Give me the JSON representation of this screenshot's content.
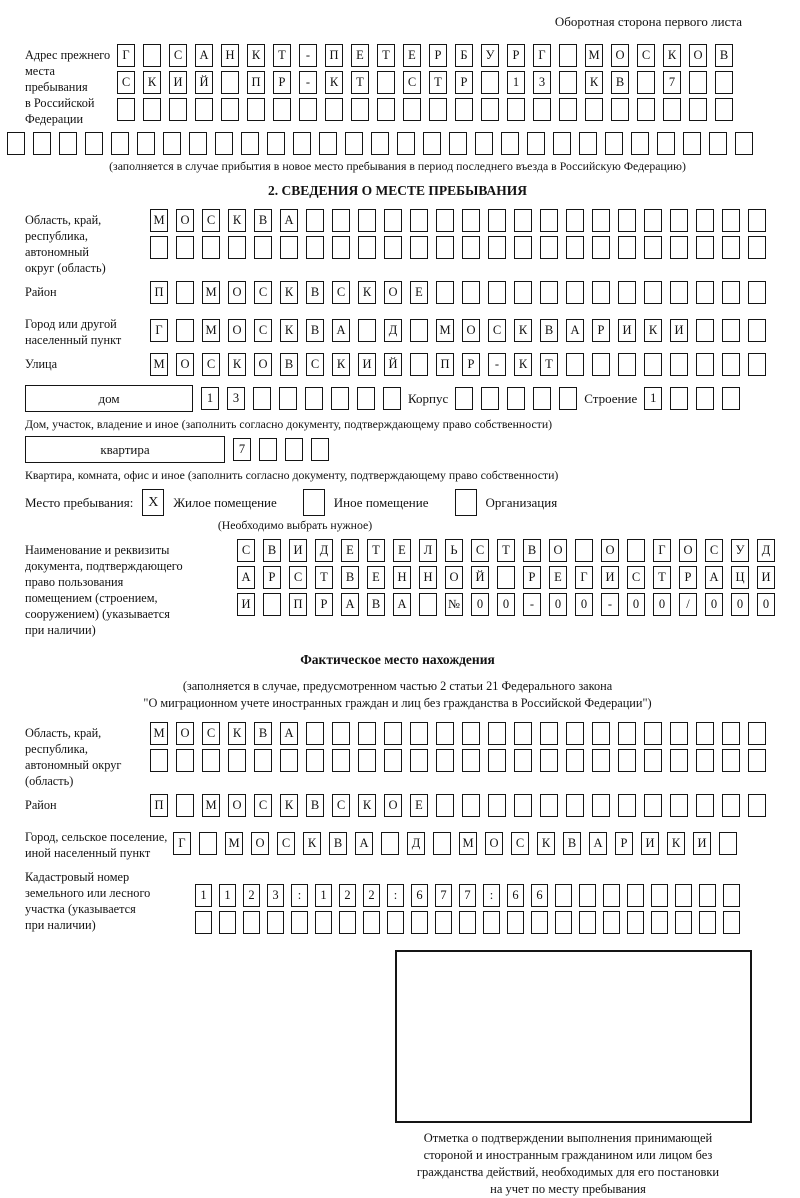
{
  "page": {
    "corner_note": "Оборотная сторона первого листа"
  },
  "prev_address": {
    "label": "Адрес прежнего\nместа пребывания\nв Российской\nФедерации",
    "rows": [
      [
        "Г",
        "",
        "С",
        "А",
        "Н",
        "К",
        "Т",
        "-",
        "П",
        "Е",
        "Т",
        "Е",
        "Р",
        "Б",
        "У",
        "Р",
        "Г",
        "",
        "М",
        "О",
        "С",
        "К",
        "О",
        "В"
      ],
      [
        "С",
        "К",
        "И",
        "Й",
        "",
        "П",
        "Р",
        "-",
        "К",
        "Т",
        "",
        "С",
        "Т",
        "Р",
        "",
        "1",
        "3",
        "",
        "К",
        "В",
        "",
        "7",
        "",
        ""
      ],
      [
        "",
        "",
        "",
        "",
        "",
        "",
        "",
        "",
        "",
        "",
        "",
        "",
        "",
        "",
        "",
        "",
        "",
        "",
        "",
        "",
        "",
        "",
        "",
        ""
      ]
    ],
    "full_row": [
      "",
      "",
      "",
      "",
      "",
      "",
      "",
      "",
      "",
      "",
      "",
      "",
      "",
      "",
      "",
      "",
      "",
      "",
      "",
      "",
      "",
      "",
      "",
      "",
      "",
      "",
      "",
      "",
      ""
    ],
    "note": "(заполняется в случае прибытия в новое место пребывания в период последнего въезда в Российскую Федерацию)"
  },
  "section2": {
    "heading": "2. СВЕДЕНИЯ О МЕСТЕ ПРЕБЫВАНИЯ",
    "region": {
      "label": "Область, край,\nреспублика,\nавтономный\nокруг (область)",
      "rows": [
        [
          "М",
          "О",
          "С",
          "К",
          "В",
          "А",
          "",
          "",
          "",
          "",
          "",
          "",
          "",
          "",
          "",
          "",
          "",
          "",
          "",
          "",
          "",
          "",
          "",
          ""
        ],
        [
          "",
          "",
          "",
          "",
          "",
          "",
          "",
          "",
          "",
          "",
          "",
          "",
          "",
          "",
          "",
          "",
          "",
          "",
          "",
          "",
          "",
          "",
          "",
          ""
        ]
      ]
    },
    "district": {
      "label": "Район",
      "cells": [
        "П",
        "",
        "М",
        "О",
        "С",
        "К",
        "В",
        "С",
        "К",
        "О",
        "Е",
        "",
        "",
        "",
        "",
        "",
        "",
        "",
        "",
        "",
        "",
        "",
        "",
        ""
      ]
    },
    "city": {
      "label": "Город или другой\nнаселенный пункт",
      "cells": [
        "Г",
        "",
        "М",
        "О",
        "С",
        "К",
        "В",
        "А",
        "",
        "Д",
        "",
        "М",
        "О",
        "С",
        "К",
        "В",
        "А",
        "Р",
        "И",
        "К",
        "И",
        "",
        "",
        ""
      ]
    },
    "street": {
      "label": "Улица",
      "cells": [
        "М",
        "О",
        "С",
        "К",
        "О",
        "В",
        "С",
        "К",
        "И",
        "Й",
        "",
        "П",
        "Р",
        "-",
        "К",
        "Т",
        "",
        "",
        "",
        "",
        "",
        "",
        "",
        ""
      ]
    },
    "house": {
      "box_label": "дом",
      "cells": [
        "1",
        "3",
        "",
        "",
        "",
        "",
        "",
        ""
      ],
      "korpus_label": "Корпус",
      "korpus_cells": [
        "",
        "",
        "",
        "",
        ""
      ],
      "stroenie_label": "Строение",
      "stroenie_cells": [
        "1",
        "",
        "",
        ""
      ]
    },
    "house_note": "Дом, участок, владение и иное (заполнить согласно документу, подтверждающему право собственности)",
    "apartment": {
      "box_label": "квартира",
      "cells": [
        "7",
        "",
        "",
        ""
      ]
    },
    "apartment_note": "Квартира, комната, офис и иное (заполнить согласно документу, подтверждающему право собственности)",
    "stay_type": {
      "label": "Место пребывания:",
      "options": [
        {
          "label": "Жилое помещение",
          "mark": "X"
        },
        {
          "label": "Иное помещение",
          "mark": ""
        },
        {
          "label": "Организация",
          "mark": ""
        }
      ],
      "note": "(Необходимо выбрать нужное)"
    },
    "doc": {
      "label": "Наименование и реквизиты\nдокумента, подтверждающего\nправо пользования\nпомещением (строением,\nсооружением) (указывается\nпри наличии)",
      "rows": [
        [
          "С",
          "В",
          "И",
          "Д",
          "Е",
          "Т",
          "Е",
          "Л",
          "Ь",
          "С",
          "Т",
          "В",
          "О",
          "",
          "О",
          "",
          "Г",
          "О",
          "С",
          "У",
          "Д"
        ],
        [
          "А",
          "Р",
          "С",
          "Т",
          "В",
          "Е",
          "Н",
          "Н",
          "О",
          "Й",
          "",
          "Р",
          "Е",
          "Г",
          "И",
          "С",
          "Т",
          "Р",
          "А",
          "Ц",
          "И"
        ],
        [
          "И",
          "",
          "П",
          "Р",
          "А",
          "В",
          "А",
          "",
          "№",
          "0",
          "0",
          "-",
          "0",
          "0",
          "-",
          "0",
          "0",
          "/",
          "0",
          "0",
          "0"
        ]
      ]
    }
  },
  "actual_location": {
    "heading": "Фактическое место нахождения",
    "law_note": "(заполняется в случае, предусмотренном частью 2 статьи 21 Федерального закона\n\"О миграционном учете иностранных граждан и лиц без гражданства в Российской Федерации\")",
    "region": {
      "label": "Область, край,\nреспублика,\nавтономный округ\n(область)",
      "rows": [
        [
          "М",
          "О",
          "С",
          "К",
          "В",
          "А",
          "",
          "",
          "",
          "",
          "",
          "",
          "",
          "",
          "",
          "",
          "",
          "",
          "",
          "",
          "",
          "",
          "",
          ""
        ],
        [
          "",
          "",
          "",
          "",
          "",
          "",
          "",
          "",
          "",
          "",
          "",
          "",
          "",
          "",
          "",
          "",
          "",
          "",
          "",
          "",
          "",
          "",
          "",
          ""
        ]
      ]
    },
    "district": {
      "label": "Район",
      "cells": [
        "П",
        "",
        "М",
        "О",
        "С",
        "К",
        "В",
        "С",
        "К",
        "О",
        "Е",
        "",
        "",
        "",
        "",
        "",
        "",
        "",
        "",
        "",
        "",
        "",
        "",
        ""
      ]
    },
    "city": {
      "label": "Город, сельское поселение,\nиной населенный пункт",
      "cells": [
        "Г",
        "",
        "М",
        "О",
        "С",
        "К",
        "В",
        "А",
        "",
        "Д",
        "",
        "М",
        "О",
        "С",
        "К",
        "В",
        "А",
        "Р",
        "И",
        "К",
        "И",
        ""
      ]
    },
    "cadastral": {
      "label": "Кадастровый номер\nземельного или лесного\nучастка (указывается\nпри наличии)",
      "rows": [
        [
          "1",
          "1",
          "2",
          "3",
          ":",
          "1",
          "2",
          "2",
          ":",
          "6",
          "7",
          "7",
          ":",
          "6",
          "6",
          "",
          "",
          "",
          "",
          "",
          "",
          "",
          ""
        ],
        [
          "",
          "",
          "",
          "",
          "",
          "",
          "",
          "",
          "",
          "",
          "",
          "",
          "",
          "",
          "",
          "",
          "",
          "",
          "",
          "",
          "",
          "",
          ""
        ]
      ]
    }
  },
  "confirmation": {
    "caption": "Отметка о подтверждении выполнения принимающей\nстороной и иностранным гражданином или лицом без\nгражданства действий, необходимых для его постановки\nна учет по месту пребывания"
  }
}
